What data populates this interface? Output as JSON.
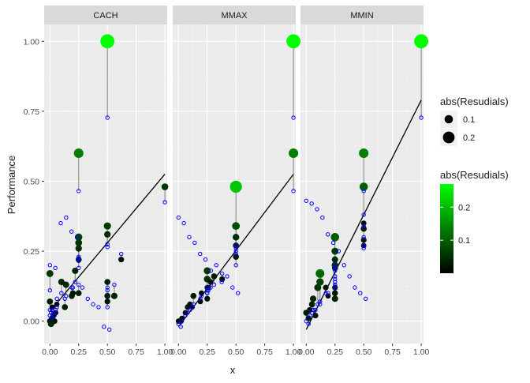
{
  "chart_data": {
    "type": "scatter",
    "title": "",
    "xlabel": "x",
    "ylabel": "Performance",
    "xlim": [
      -0.05,
      1.02
    ],
    "ylim": [
      -0.08,
      1.06
    ],
    "x_ticks": [
      0.0,
      0.25,
      0.5,
      0.75,
      1.0
    ],
    "x_tick_labels": [
      "0.00",
      "0.25",
      "0.50",
      "0.75",
      "1.00"
    ],
    "y_ticks": [
      0.0,
      0.25,
      0.5,
      0.75,
      1.0
    ],
    "y_tick_labels": [
      "0.00",
      "0.25",
      "0.50",
      "0.75",
      "1.00"
    ],
    "grid": true,
    "legend_placement": "right",
    "colors": {
      "panel_bg": "#ebebeb",
      "strip_bg": "#d9d9d9",
      "grid_major": "#ffffff",
      "grid_minor": "#f2f2f2",
      "fit_line": "#000000",
      "segment": "#7f7f7f",
      "pred_point": "#0000ff",
      "color_low": "#000000",
      "color_high": "#00ff00"
    },
    "legends": {
      "size": {
        "title": "abs(Resudials)",
        "entries": [
          {
            "label": "0.1",
            "value": 0.1
          },
          {
            "label": "0.2",
            "value": 0.2
          }
        ]
      },
      "color": {
        "title": "abs(Resudials)",
        "tick_values": [
          0.1,
          0.2
        ],
        "tick_labels": [
          "0.1",
          "0.2"
        ],
        "min": 0.0,
        "max": 0.27
      }
    },
    "panels": [
      {
        "name": "CACH",
        "fit_line": [
          [
            0.0,
            0.035
          ],
          [
            1.0,
            0.525
          ]
        ],
        "points": [
          [
            0.5,
            1.0,
            0.727
          ],
          [
            0.25,
            0.6,
            0.465
          ],
          [
            1.0,
            0.48,
            0.425
          ],
          [
            0.5,
            0.34,
            0.275
          ],
          [
            0.5,
            0.31,
            0.265
          ],
          [
            0.25,
            0.3,
            0.23
          ],
          [
            0.25,
            0.28,
            0.225
          ],
          [
            0.25,
            0.26,
            0.215
          ],
          [
            0.25,
            0.22,
            0.19
          ],
          [
            0.0,
            0.17,
            0.11
          ],
          [
            0.22,
            0.18,
            0.14
          ],
          [
            0.2,
            0.1,
            0.12
          ],
          [
            0.25,
            0.1,
            0.13
          ],
          [
            0.19,
            0.09,
            0.12
          ],
          [
            0.1,
            0.14,
            0.1
          ],
          [
            0.14,
            0.13,
            0.09
          ],
          [
            0.13,
            0.05,
            0.08
          ],
          [
            0.0,
            0.07,
            0.04
          ],
          [
            0.06,
            0.06,
            0.05
          ],
          [
            0.5,
            0.14,
            0.11
          ],
          [
            0.5,
            0.09,
            0.12
          ],
          [
            0.5,
            0.07,
            0.05
          ],
          [
            0.56,
            0.09,
            0.13
          ],
          [
            0.62,
            0.22,
            0.24
          ],
          [
            0.02,
            0.05,
            0.04
          ],
          [
            0.03,
            0.02,
            0.03
          ],
          [
            0.04,
            0.0,
            0.02
          ],
          [
            0.05,
            0.03,
            0.04
          ],
          [
            0.0,
            0.0,
            0.02
          ],
          [
            0.01,
            -0.01,
            0.03
          ],
          [
            0.02,
            0.01,
            0.04
          ]
        ],
        "extra_predictions": [
          0.2,
          0.19,
          0.35,
          0.37,
          0.32,
          0.3,
          0.12,
          0.08,
          0.06,
          0.05,
          -0.02,
          -0.03,
          0.01,
          0.08
        ]
      },
      {
        "name": "MMAX",
        "fit_line": [
          [
            0.0,
            -0.02
          ],
          [
            1.0,
            0.525
          ]
        ],
        "points": [
          [
            1.0,
            1.0,
            0.727
          ],
          [
            1.0,
            0.6,
            0.465
          ],
          [
            0.5,
            0.48,
            0.27
          ],
          [
            0.5,
            0.34,
            0.26
          ],
          [
            0.5,
            0.3,
            0.25
          ],
          [
            0.5,
            0.27,
            0.24
          ],
          [
            0.5,
            0.23,
            0.2
          ],
          [
            0.25,
            0.18,
            0.12
          ],
          [
            0.25,
            0.15,
            0.1
          ],
          [
            0.25,
            0.12,
            0.11
          ],
          [
            0.2,
            0.1,
            0.09
          ],
          [
            0.25,
            0.08,
            0.1
          ],
          [
            0.13,
            0.09,
            0.06
          ],
          [
            0.1,
            0.06,
            0.04
          ],
          [
            0.12,
            0.05,
            0.05
          ],
          [
            0.06,
            0.03,
            0.02
          ],
          [
            0.03,
            0.01,
            0.0
          ],
          [
            0.0,
            0.0,
            -0.01
          ],
          [
            0.02,
            0.0,
            -0.02
          ],
          [
            0.38,
            0.15,
            0.17
          ],
          [
            0.31,
            0.16,
            0.13
          ],
          [
            0.26,
            0.12,
            0.11
          ],
          [
            0.28,
            0.14,
            0.12
          ],
          [
            0.19,
            0.07,
            0.08
          ],
          [
            0.08,
            0.05,
            0.03
          ]
        ],
        "extra_predictions": [
          0.37,
          0.35,
          0.3,
          0.28,
          0.24,
          0.22,
          0.18,
          0.2,
          0.14,
          0.16,
          0.12,
          0.1
        ]
      },
      {
        "name": "MMIN",
        "fit_line": [
          [
            0.0,
            -0.03
          ],
          [
            1.0,
            0.79
          ]
        ],
        "points": [
          [
            1.0,
            1.0,
            0.727
          ],
          [
            0.5,
            0.6,
            0.465
          ],
          [
            0.5,
            0.48,
            0.38
          ],
          [
            0.5,
            0.35,
            0.34
          ],
          [
            0.5,
            0.33,
            0.3
          ],
          [
            0.5,
            0.29,
            0.27
          ],
          [
            0.5,
            0.27,
            0.26
          ],
          [
            0.25,
            0.3,
            0.2
          ],
          [
            0.25,
            0.25,
            0.19
          ],
          [
            0.25,
            0.22,
            0.18
          ],
          [
            0.25,
            0.19,
            0.16
          ],
          [
            0.25,
            0.12,
            0.14
          ],
          [
            0.25,
            0.1,
            0.13
          ],
          [
            0.25,
            0.08,
            0.12
          ],
          [
            0.25,
            0.2,
            0.15
          ],
          [
            0.12,
            0.17,
            0.06
          ],
          [
            0.12,
            0.14,
            0.07
          ],
          [
            0.1,
            0.12,
            0.06
          ],
          [
            0.06,
            0.08,
            0.04
          ],
          [
            0.05,
            0.06,
            0.03
          ],
          [
            0.03,
            0.04,
            0.02
          ],
          [
            0.0,
            0.03,
            0.0
          ],
          [
            0.02,
            0.01,
            -0.01
          ],
          [
            0.19,
            0.09,
            0.1
          ],
          [
            0.17,
            0.12,
            0.1
          ],
          [
            0.08,
            0.02,
            0.04
          ]
        ],
        "extra_predictions": [
          0.43,
          0.42,
          0.4,
          0.37,
          0.31,
          0.28,
          0.25,
          0.2,
          0.16,
          0.12,
          0.1,
          0.08
        ]
      }
    ]
  }
}
